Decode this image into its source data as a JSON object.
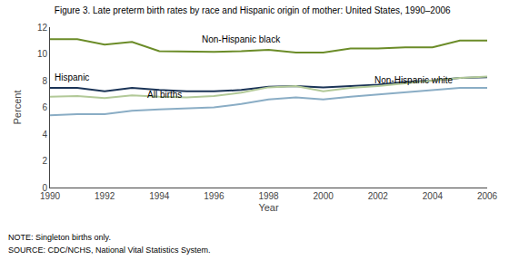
{
  "chart_data": {
    "type": "line",
    "title": "Figure 3. Late preterm birth rates by race and Hispanic origin of mother: United States, 1990–2006",
    "notes": [
      "NOTE: Singleton births only.",
      "SOURCE: CDC/NCHS, National Vital Statistics System."
    ],
    "x_label": "Year",
    "y_label": "Percent",
    "x": [
      1990,
      1991,
      1992,
      1993,
      1994,
      1995,
      1996,
      1997,
      1998,
      1999,
      2000,
      2001,
      2002,
      2003,
      2004,
      2005,
      2006
    ],
    "series": [
      {
        "color": "#6b8c28",
        "values": [
          11.1,
          11.1,
          10.7,
          10.9,
          10.2,
          10.15,
          10.15,
          10.2,
          10.3,
          10.1,
          10.1,
          10.4,
          10.4,
          10.5,
          10.5,
          11.0,
          11.0
        ]
      },
      {
        "color": "#1b3457",
        "values": [
          7.45,
          7.45,
          7.2,
          7.45,
          7.3,
          7.2,
          7.2,
          7.3,
          7.55,
          7.6,
          7.5,
          7.6,
          7.7,
          7.9,
          8.0,
          8.2,
          8.25
        ]
      },
      {
        "color": "#b2c998",
        "values": [
          6.8,
          6.85,
          6.7,
          6.9,
          6.8,
          6.75,
          6.85,
          7.1,
          7.5,
          7.6,
          7.2,
          7.45,
          7.6,
          7.8,
          8.05,
          8.2,
          8.3
        ]
      },
      {
        "color": "#8aadc5",
        "values": [
          5.4,
          5.5,
          5.5,
          5.75,
          5.85,
          5.95,
          6.0,
          6.25,
          6.6,
          6.75,
          6.6,
          6.8,
          6.95,
          7.15,
          7.25,
          7.45,
          7.45
        ]
      }
    ],
    "annotations": [
      {
        "text": "Non-Hispanic black",
        "x": 1995.5,
        "y": 10.55
      },
      {
        "text": "Hispanic",
        "x": 1990.1,
        "y": 7.75
      },
      {
        "text": "All births",
        "x": 1993.5,
        "y": 6.45
      },
      {
        "text": "Non-Hispanic white",
        "x": 2001.8,
        "y": 7.55
      }
    ],
    "xlim": [
      1990,
      2006
    ],
    "xticks": [
      1990,
      1992,
      1994,
      1996,
      1998,
      2000,
      2002,
      2004,
      2006
    ],
    "ylim": [
      0,
      12
    ],
    "yticks": [
      0,
      2,
      4,
      6,
      8,
      10,
      12
    ],
    "grid": false
  }
}
